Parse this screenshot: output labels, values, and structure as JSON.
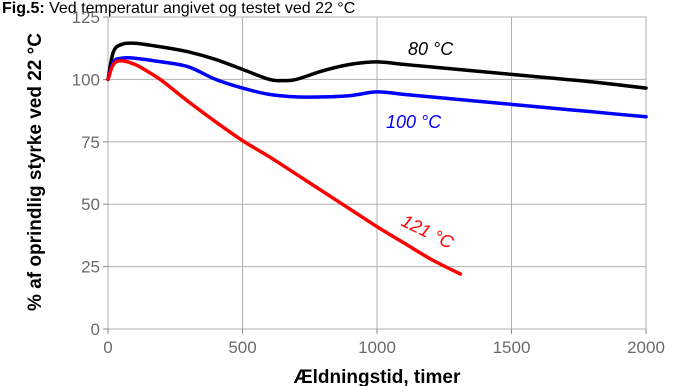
{
  "header": {
    "bold": "Fig.5:",
    "rest": " Ved temperatur angivet og testet ved 22 °C"
  },
  "chart_data": {
    "type": "line",
    "xlabel": "Ældningstid, timer",
    "ylabel": "% af oprindlig styrke ved 22 °C",
    "xlim": [
      0,
      2000
    ],
    "ylim": [
      0,
      125
    ],
    "xticks": [
      0,
      500,
      1000,
      1500,
      2000
    ],
    "yticks": [
      0,
      25,
      50,
      75,
      100,
      125
    ],
    "grid": true,
    "series": [
      {
        "name": "80 °C",
        "color": "#000000",
        "x": [
          0,
          20,
          50,
          100,
          200,
          300,
          400,
          500,
          600,
          650,
          700,
          800,
          900,
          1000,
          1100,
          1200,
          1400,
          1600,
          1800,
          2000
        ],
        "y": [
          100,
          111,
          114,
          114.5,
          113,
          111,
          108,
          104,
          100,
          99.5,
          100,
          103.5,
          106,
          107,
          106,
          105,
          103,
          101,
          99,
          96.5
        ]
      },
      {
        "name": "100 °C",
        "color": "#0000ff",
        "x": [
          0,
          20,
          50,
          100,
          200,
          300,
          400,
          500,
          600,
          700,
          800,
          900,
          1000,
          1100,
          1200,
          1400,
          1600,
          1800,
          2000
        ],
        "y": [
          100,
          107,
          108.5,
          108.5,
          107,
          105,
          100,
          96.5,
          94,
          93,
          93,
          93.5,
          95,
          94,
          93,
          91,
          89,
          87,
          85
        ]
      },
      {
        "name": "121 °C",
        "color": "#ff0000",
        "x": [
          0,
          20,
          50,
          100,
          150,
          200,
          300,
          400,
          500,
          600,
          700,
          800,
          900,
          1000,
          1100,
          1200,
          1310
        ],
        "y": [
          100,
          106,
          107.5,
          106,
          103,
          99.5,
          91,
          83,
          75.5,
          69,
          62,
          55,
          48,
          41,
          34.5,
          28,
          22
        ]
      }
    ]
  }
}
